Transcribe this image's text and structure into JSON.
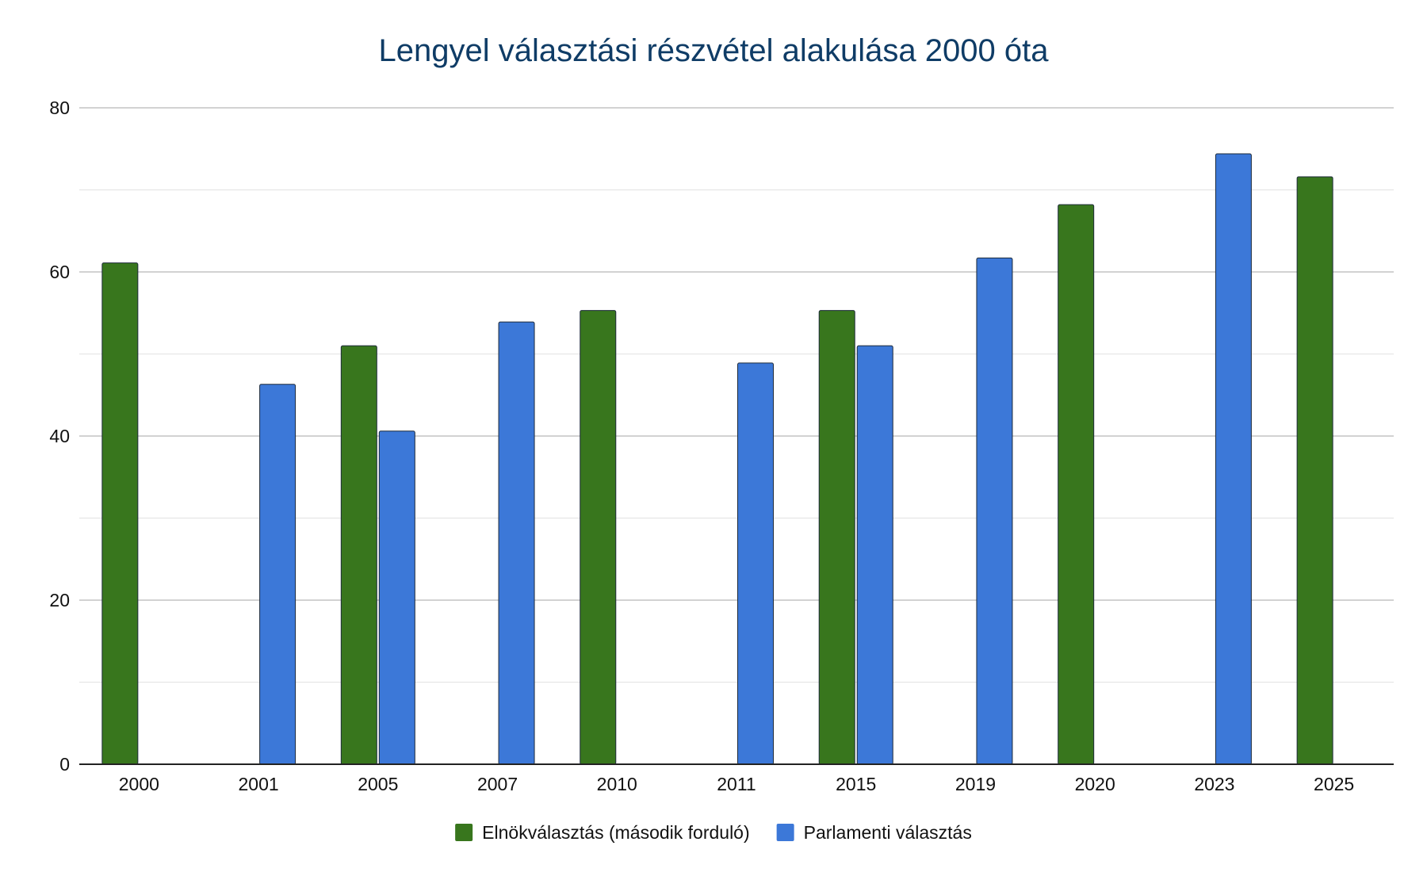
{
  "chart_data": {
    "type": "bar",
    "title": "Lengyel választási részvétel alakulása 2000 óta",
    "xlabel": "",
    "ylabel": "",
    "ylim": [
      0,
      80
    ],
    "yticks": [
      "0",
      "20",
      "40",
      "60",
      "80"
    ],
    "minor_gridlines": true,
    "legend_position": "bottom",
    "categories": [
      "2000",
      "2001",
      "2005",
      "2007",
      "2010",
      "2011",
      "2015",
      "2019",
      "2020",
      "2023",
      "2025"
    ],
    "series": [
      {
        "name": "Elnökválasztás (második forduló)",
        "color": "#38761d",
        "values": [
          61.1,
          null,
          51.0,
          null,
          55.3,
          null,
          55.3,
          null,
          68.2,
          null,
          71.6
        ]
      },
      {
        "name": "Parlamenti választás",
        "color": "#3c78d8",
        "values": [
          null,
          46.3,
          40.6,
          53.9,
          null,
          48.9,
          51.0,
          61.7,
          null,
          74.4,
          null
        ]
      }
    ]
  }
}
